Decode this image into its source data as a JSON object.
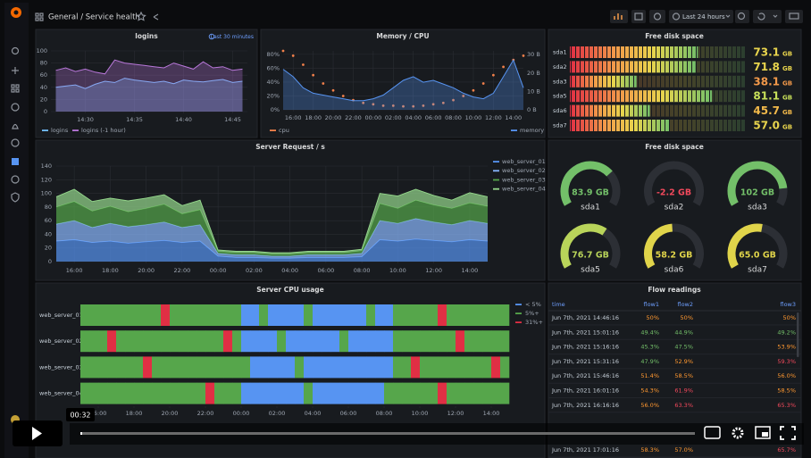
{
  "topbar": {
    "breadcrumb": "General / Service health",
    "time_range": "Last 24 hours"
  },
  "panels": {
    "logins": {
      "type": "line",
      "title": "logins",
      "time_info": "Last 30 minutes",
      "x": [
        27,
        28,
        29,
        30,
        31,
        32,
        33,
        34,
        35,
        36,
        37,
        38,
        39,
        40,
        41,
        42,
        43,
        44,
        45,
        46
      ],
      "xlim": [
        26.5,
        46.5
      ],
      "xticks": [
        {
          "value": 30,
          "label": "14:30"
        },
        {
          "value": 35,
          "label": "14:35"
        },
        {
          "value": 40,
          "label": "14:40"
        },
        {
          "value": 45,
          "label": "14:45"
        }
      ],
      "ylim": [
        0,
        100
      ],
      "yticks": [
        0,
        20,
        40,
        60,
        80,
        100
      ],
      "grid": true,
      "series": [
        {
          "name": "logins",
          "color": "#73bfff",
          "values": [
            40,
            42,
            44,
            38,
            45,
            50,
            48,
            55,
            52,
            50,
            48,
            50,
            46,
            52,
            50,
            49,
            51,
            53,
            48,
            50
          ]
        },
        {
          "name": "logins (-1 hour)",
          "color": "#b877d9",
          "values": [
            68,
            72,
            66,
            70,
            65,
            62,
            85,
            80,
            78,
            76,
            74,
            72,
            80,
            75,
            70,
            82,
            72,
            74,
            68,
            70
          ]
        }
      ]
    },
    "memory_cpu": {
      "type": "line",
      "title": "Memory / CPU",
      "x": [
        0,
        1,
        2,
        3,
        4,
        5,
        6,
        7,
        8,
        9,
        10,
        11,
        12,
        13,
        14,
        15,
        16,
        17,
        18,
        19,
        20,
        21,
        22,
        23,
        24
      ],
      "xlim": [
        0,
        24
      ],
      "xticks": [
        {
          "value": 1,
          "label": "16:00"
        },
        {
          "value": 3,
          "label": "18:00"
        },
        {
          "value": 5,
          "label": "20:00"
        },
        {
          "value": 7,
          "label": "22:00"
        },
        {
          "value": 9,
          "label": "00:00"
        },
        {
          "value": 11,
          "label": "02:00"
        },
        {
          "value": 13,
          "label": "04:00"
        },
        {
          "value": 15,
          "label": "06:00"
        },
        {
          "value": 17,
          "label": "08:00"
        },
        {
          "value": 19,
          "label": "10:00"
        },
        {
          "value": 21,
          "label": "12:00"
        },
        {
          "value": 23,
          "label": "14:00"
        }
      ],
      "ylim": [
        0,
        85
      ],
      "yticks": [
        {
          "value": 0,
          "label": "0%"
        },
        {
          "value": 20,
          "label": "20%"
        },
        {
          "value": 40,
          "label": "40%"
        },
        {
          "value": 60,
          "label": "60%"
        },
        {
          "value": 80,
          "label": "80%"
        }
      ],
      "y2lim": [
        0,
        32
      ],
      "y2ticks": [
        {
          "value": 0,
          "label": "0 B"
        },
        {
          "value": 10,
          "label": "10 B"
        },
        {
          "value": 20,
          "label": "20 B"
        },
        {
          "value": 30,
          "label": "30 B"
        }
      ],
      "grid": true,
      "series": [
        {
          "name": "cpu",
          "color": "#f2804a",
          "values": [
            85,
            78,
            65,
            50,
            38,
            28,
            20,
            14,
            10,
            8,
            6,
            6,
            5,
            5,
            6,
            8,
            10,
            14,
            20,
            28,
            38,
            50,
            62,
            72,
            78
          ]
        },
        {
          "name": "memory",
          "color": "#5794f2",
          "axis": "y2",
          "values": [
            22,
            18,
            12,
            9,
            8,
            7,
            6,
            5,
            5,
            6,
            8,
            12,
            16,
            18,
            15,
            16,
            14,
            12,
            9,
            7,
            6,
            9,
            18,
            27,
            12
          ]
        }
      ]
    },
    "disk_bars": {
      "type": "bargauge",
      "title": "Free disk space",
      "unit": "GB",
      "range": [
        0,
        100
      ],
      "categories": [
        "sda1",
        "sda2",
        "sda3",
        "sda5",
        "sda6",
        "sda7"
      ],
      "values": [
        73.1,
        71.8,
        38.1,
        81.1,
        45.7,
        57.0
      ],
      "value_labels": [
        "73.1",
        "71.8",
        "38.1",
        "81.1",
        "45.7",
        "57.0"
      ],
      "colors": [
        "#e8d44d",
        "#e8d44d",
        "#f2994a",
        "#c8e05a",
        "#f2b94a",
        "#e8d44d"
      ]
    },
    "requests": {
      "type": "area",
      "stacked": true,
      "title": "Server Request / s",
      "x": [
        0,
        1,
        2,
        3,
        4,
        5,
        6,
        7,
        8,
        9,
        10,
        11,
        12,
        13,
        14,
        15,
        16,
        17,
        18,
        19,
        20,
        21,
        22,
        23,
        24
      ],
      "xlim": [
        0,
        24
      ],
      "xticks": [
        {
          "value": 1,
          "label": "16:00"
        },
        {
          "value": 3,
          "label": "18:00"
        },
        {
          "value": 5,
          "label": "20:00"
        },
        {
          "value": 7,
          "label": "22:00"
        },
        {
          "value": 9,
          "label": "00:00"
        },
        {
          "value": 11,
          "label": "02:00"
        },
        {
          "value": 13,
          "label": "04:00"
        },
        {
          "value": 15,
          "label": "06:00"
        },
        {
          "value": 17,
          "label": "08:00"
        },
        {
          "value": 19,
          "label": "10:00"
        },
        {
          "value": 21,
          "label": "12:00"
        },
        {
          "value": 23,
          "label": "14:00"
        }
      ],
      "ylim": [
        0,
        140
      ],
      "yticks": [
        0,
        20,
        40,
        60,
        80,
        100,
        120,
        140
      ],
      "grid": true,
      "series": [
        {
          "name": "web_server_01",
          "color": "#5794f2",
          "values": [
            30,
            32,
            28,
            30,
            27,
            29,
            31,
            28,
            30,
            8,
            6,
            6,
            5,
            5,
            6,
            6,
            6,
            7,
            32,
            30,
            33,
            31,
            29,
            32,
            30
          ]
        },
        {
          "name": "web_server_02",
          "color": "#8ab8ff",
          "values": [
            25,
            28,
            22,
            26,
            24,
            25,
            27,
            22,
            24,
            4,
            4,
            4,
            3,
            3,
            4,
            4,
            4,
            5,
            28,
            26,
            30,
            27,
            25,
            28,
            26
          ]
        },
        {
          "name": "web_server_03",
          "color": "#56a64b",
          "values": [
            25,
            28,
            24,
            25,
            22,
            24,
            26,
            20,
            22,
            3,
            3,
            3,
            3,
            3,
            3,
            3,
            3,
            4,
            25,
            22,
            27,
            25,
            24,
            26,
            25
          ]
        },
        {
          "name": "web_server_04",
          "color": "#96d98d",
          "values": [
            15,
            18,
            14,
            12,
            16,
            15,
            14,
            12,
            14,
            2,
            2,
            2,
            2,
            2,
            2,
            2,
            2,
            2,
            15,
            18,
            16,
            14,
            12,
            15,
            14
          ]
        }
      ]
    },
    "disk_gauges": {
      "type": "gauge",
      "title": "Free disk space",
      "range": [
        0,
        120
      ],
      "categories": [
        "sda1",
        "sda2",
        "sda3",
        "sda5",
        "sda6",
        "sda7"
      ],
      "values": [
        83.9,
        -2.2,
        102,
        76.7,
        58.2,
        65.0
      ],
      "value_labels": [
        "83.9 GB",
        "-2.2 GB",
        "102 GB",
        "76.7 GB",
        "58.2 GB",
        "65.0 GB"
      ],
      "colors": [
        "#73bf69",
        "#f2495c",
        "#73bf69",
        "#b9d45a",
        "#e0d44a",
        "#e0d44a"
      ]
    },
    "cpu_usage": {
      "type": "status-timeline",
      "title": "Server CPU usage",
      "rows": [
        "web_server_01",
        "web_server_02",
        "web_server_03",
        "web_server_04"
      ],
      "states": [
        {
          "name": "< 5%",
          "color": "#5794f2"
        },
        {
          "name": "5%+",
          "color": "#56a64b"
        },
        {
          "name": "31%+",
          "color": "#e02f44"
        }
      ],
      "xlim": [
        0,
        24
      ],
      "xticks": [
        {
          "value": 1,
          "label": "16:00"
        },
        {
          "value": 3,
          "label": "18:00"
        },
        {
          "value": 5,
          "label": "20:00"
        },
        {
          "value": 7,
          "label": "22:00"
        },
        {
          "value": 9,
          "label": "00:00"
        },
        {
          "value": 11,
          "label": "02:00"
        },
        {
          "value": 13,
          "label": "04:00"
        },
        {
          "value": 15,
          "label": "06:00"
        },
        {
          "value": 17,
          "label": "08:00"
        },
        {
          "value": 19,
          "label": "10:00"
        },
        {
          "value": 21,
          "label": "12:00"
        },
        {
          "value": 23,
          "label": "14:00"
        }
      ],
      "values": [
        [
          1,
          1,
          1,
          1,
          1,
          1,
          1,
          1,
          1,
          2,
          1,
          1,
          1,
          1,
          1,
          1,
          1,
          1,
          0,
          0,
          1,
          0,
          0,
          0,
          0,
          1,
          0,
          0,
          0,
          0,
          0,
          0,
          1,
          0,
          0,
          1,
          1,
          1,
          1,
          1,
          2,
          1,
          1,
          1,
          1,
          1,
          1,
          1
        ],
        [
          1,
          1,
          1,
          2,
          1,
          1,
          1,
          1,
          1,
          1,
          1,
          1,
          1,
          1,
          1,
          1,
          2,
          1,
          0,
          0,
          0,
          0,
          1,
          0,
          0,
          0,
          0,
          0,
          0,
          1,
          0,
          0,
          0,
          0,
          0,
          1,
          1,
          1,
          1,
          1,
          1,
          1,
          2,
          1,
          1,
          1,
          1,
          1
        ],
        [
          1,
          1,
          1,
          1,
          1,
          1,
          1,
          2,
          1,
          1,
          1,
          1,
          1,
          1,
          1,
          1,
          1,
          1,
          1,
          0,
          0,
          0,
          0,
          0,
          1,
          0,
          0,
          0,
          0,
          0,
          0,
          0,
          0,
          0,
          0,
          1,
          1,
          2,
          1,
          1,
          1,
          1,
          1,
          1,
          1,
          1,
          2,
          1
        ],
        [
          1,
          1,
          1,
          1,
          1,
          1,
          1,
          1,
          1,
          1,
          1,
          1,
          1,
          1,
          2,
          1,
          1,
          1,
          0,
          0,
          0,
          0,
          0,
          0,
          0,
          1,
          0,
          0,
          0,
          0,
          0,
          0,
          0,
          0,
          1,
          1,
          1,
          1,
          1,
          1,
          2,
          1,
          1,
          1,
          1,
          1,
          1,
          1
        ]
      ]
    },
    "flow": {
      "type": "table",
      "title": "Flow readings",
      "columns": [
        "time",
        "flow1",
        "flow2",
        "flow3"
      ],
      "rows": [
        [
          "Jun 7th, 2021 14:46:16",
          "50%",
          "50%",
          "50%"
        ],
        [
          "Jun 7th, 2021 15:01:16",
          "49.4%",
          "44.9%",
          "49.2%"
        ],
        [
          "Jun 7th, 2021 15:16:16",
          "45.3%",
          "47.5%",
          "53.9%"
        ],
        [
          "Jun 7th, 2021 15:31:16",
          "47.9%",
          "52.9%",
          "59.3%"
        ],
        [
          "Jun 7th, 2021 15:46:16",
          "51.4%",
          "58.5%",
          "56.0%"
        ],
        [
          "Jun 7th, 2021 16:01:16",
          "54.3%",
          "61.9%",
          "58.5%"
        ],
        [
          "Jun 7th, 2021 16:16:16",
          "56.0%",
          "63.3%",
          "65.3%"
        ],
        [
          "Jun 7th, 2021 17:01:16",
          "58.3%",
          "57.0%",
          "65.7%"
        ]
      ]
    }
  },
  "video": {
    "timestamp": "00:32"
  }
}
